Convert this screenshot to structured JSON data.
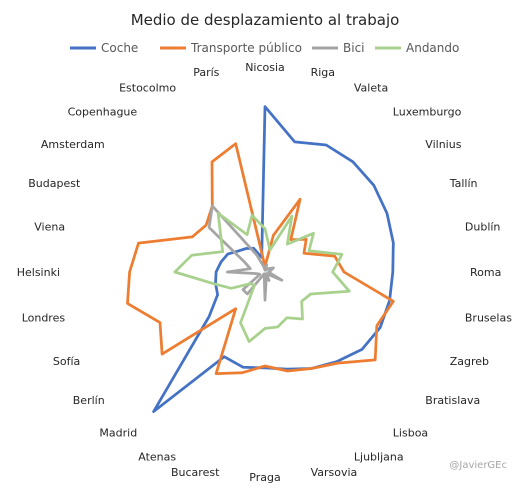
{
  "chart_data": {
    "type": "radar",
    "title": "Medio de desplazamiento al trabajo",
    "legend_position": "top",
    "gridlines": false,
    "categories": [
      "Nicosia",
      "Riga",
      "Valeta",
      "Luxemburgo",
      "Vilnius",
      "Tallín",
      "Dublín",
      "Roma",
      "Bruselas",
      "Zagreb",
      "Bratislava",
      "Lisboa",
      "Ljubljana",
      "Varsovia",
      "Praga",
      "Bucarest",
      "Atenas",
      "Madrid",
      "Berlín",
      "Sofía",
      "Londres",
      "Helsinki",
      "Viena",
      "Budapest",
      "Amsterdam",
      "Copenhague",
      "Estocolmo",
      "París"
    ],
    "series": [
      {
        "name": "Coche",
        "color": "#4472C4",
        "values": [
          88,
          71,
          75,
          75,
          74,
          72,
          70,
          68,
          68,
          68,
          66,
          61,
          57,
          53,
          51,
          52,
          50,
          95,
          38,
          28,
          27,
          26,
          24,
          22,
          18,
          16,
          14,
          8
        ]
      },
      {
        "name": "Transporte público",
        "color": "#ED7D31",
        "values": [
          3,
          20,
          43,
          22,
          28,
          23,
          38,
          42,
          70,
          66,
          75,
          62,
          57,
          54,
          50,
          55,
          60,
          25,
          70,
          62,
          75,
          72,
          69,
          43,
          40,
          45,
          65,
          70
        ]
      },
      {
        "name": "Bici",
        "color": "#A5A5A5",
        "values": [
          1,
          4,
          1,
          2,
          3,
          5,
          3,
          2,
          3,
          10,
          2,
          1,
          5,
          3,
          15,
          2,
          1,
          15,
          15,
          3,
          4,
          20,
          8,
          12,
          38,
          45,
          10,
          3
        ]
      },
      {
        "name": "Andando",
        "color": "#A9D18E",
        "values": [
          23,
          12,
          33,
          19,
          33,
          26,
          42,
          36,
          46,
          27,
          25,
          32,
          27,
          30,
          30,
          38,
          30,
          9,
          10,
          20,
          28,
          48,
          40,
          25,
          30,
          40,
          22,
          31
        ]
      }
    ]
  },
  "credit": "@JavierGEc"
}
